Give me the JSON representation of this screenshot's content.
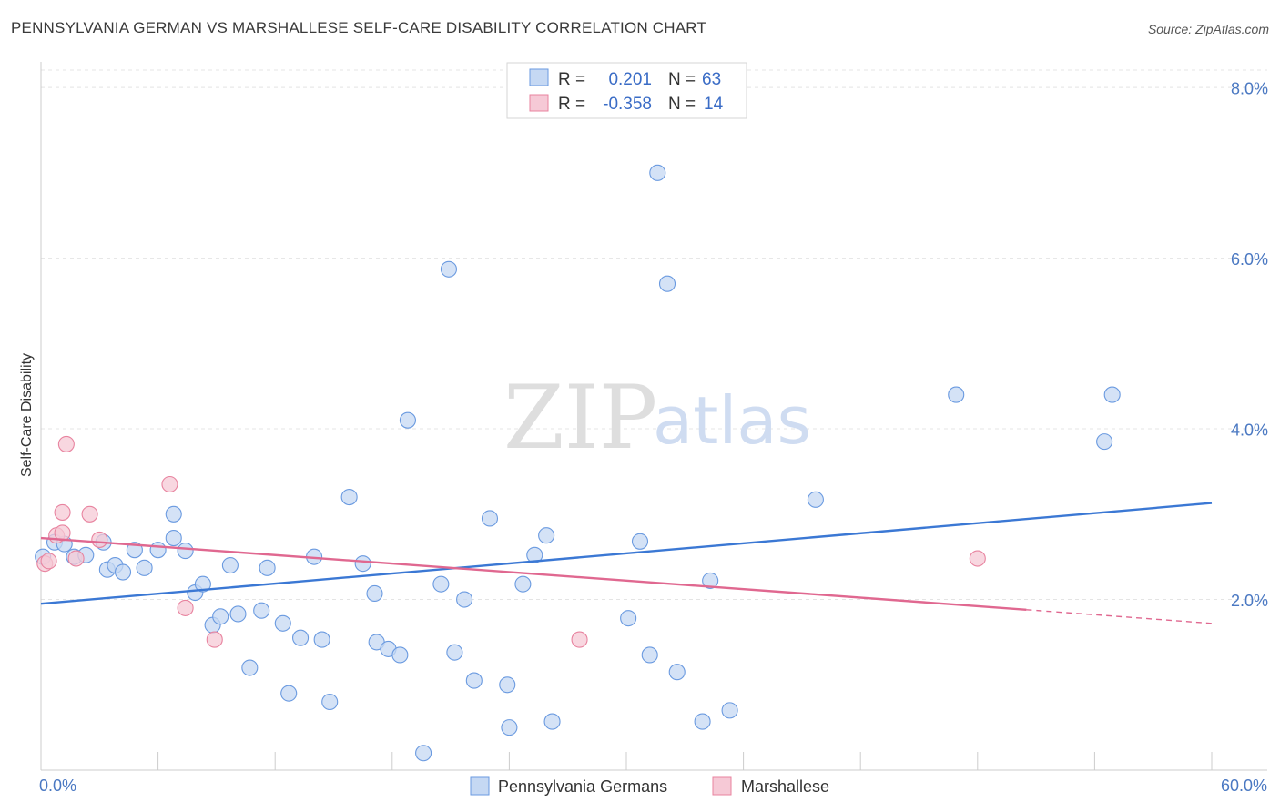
{
  "header": {
    "title": "PENNSYLVANIA GERMAN VS MARSHALLESE SELF-CARE DISABILITY CORRELATION CHART",
    "source": "Source: ZipAtlas.com"
  },
  "watermark": {
    "zip": "ZIP",
    "atlas": "atlas"
  },
  "chart_data": {
    "type": "scatter",
    "title": "PENNSYLVANIA GERMAN VS MARSHALLESE SELF-CARE DISABILITY CORRELATION CHART",
    "xlabel": "",
    "ylabel": "Self-Care Disability",
    "xlim": [
      0,
      60
    ],
    "ylim": [
      0,
      8.3
    ],
    "x_tick_labels": [
      "0.0%",
      "60.0%"
    ],
    "y_ticks": [
      2,
      4,
      6,
      8
    ],
    "y_tick_labels": [
      "2.0%",
      "4.0%",
      "6.0%",
      "8.0%"
    ],
    "grid": true,
    "legend_placement": "top-center",
    "legend": [
      {
        "r_label": "R =",
        "r_value": "0.201",
        "n_label": "N =",
        "n_value": "63"
      },
      {
        "r_label": "R =",
        "r_value": "-0.358",
        "n_label": "N =",
        "n_value": "14"
      }
    ],
    "series": [
      {
        "name": "Pennsylvania Germans",
        "color": "#6a9ae0",
        "fill": "#c5d8f3",
        "trend": {
          "x0": 0,
          "y0": 1.95,
          "x1": 60,
          "y1": 3.13
        },
        "points": [
          [
            0.1,
            2.5
          ],
          [
            0.7,
            2.67
          ],
          [
            1.2,
            2.65
          ],
          [
            1.7,
            2.5
          ],
          [
            2.3,
            2.52
          ],
          [
            3.4,
            2.35
          ],
          [
            3.2,
            2.67
          ],
          [
            3.8,
            2.4
          ],
          [
            4.2,
            2.32
          ],
          [
            4.8,
            2.58
          ],
          [
            5.3,
            2.37
          ],
          [
            6.0,
            2.58
          ],
          [
            6.8,
            3.0
          ],
          [
            6.8,
            2.72
          ],
          [
            7.4,
            2.57
          ],
          [
            7.9,
            2.08
          ],
          [
            8.3,
            2.18
          ],
          [
            8.8,
            1.7
          ],
          [
            9.2,
            1.8
          ],
          [
            9.7,
            2.4
          ],
          [
            10.1,
            1.83
          ],
          [
            10.7,
            1.2
          ],
          [
            11.3,
            1.87
          ],
          [
            11.6,
            2.37
          ],
          [
            12.4,
            1.72
          ],
          [
            12.7,
            0.9
          ],
          [
            13.3,
            1.55
          ],
          [
            14.0,
            2.5
          ],
          [
            14.4,
            1.53
          ],
          [
            14.8,
            0.8
          ],
          [
            15.8,
            3.2
          ],
          [
            16.5,
            2.42
          ],
          [
            17.1,
            2.07
          ],
          [
            17.2,
            1.5
          ],
          [
            17.8,
            1.42
          ],
          [
            18.4,
            1.35
          ],
          [
            18.8,
            4.1
          ],
          [
            19.6,
            0.2
          ],
          [
            20.5,
            2.18
          ],
          [
            20.9,
            5.87
          ],
          [
            21.2,
            1.38
          ],
          [
            21.7,
            2.0
          ],
          [
            22.2,
            1.05
          ],
          [
            23.0,
            2.95
          ],
          [
            23.9,
            1.0
          ],
          [
            24.0,
            0.5
          ],
          [
            24.7,
            2.18
          ],
          [
            25.3,
            2.52
          ],
          [
            25.9,
            2.75
          ],
          [
            26.2,
            0.57
          ],
          [
            30.1,
            1.78
          ],
          [
            30.7,
            2.68
          ],
          [
            31.2,
            1.35
          ],
          [
            31.6,
            7.0
          ],
          [
            32.1,
            5.7
          ],
          [
            32.6,
            1.15
          ],
          [
            33.9,
            0.57
          ],
          [
            34.3,
            2.22
          ],
          [
            35.3,
            0.7
          ],
          [
            39.7,
            3.17
          ],
          [
            46.9,
            4.4
          ],
          [
            54.5,
            3.85
          ],
          [
            54.9,
            4.4
          ]
        ]
      },
      {
        "name": "Marshallese",
        "color": "#e8839f",
        "fill": "#f6c9d6",
        "trend": {
          "x0": 0,
          "y0": 2.72,
          "x1": 50.5,
          "y1": 1.88,
          "dash_to_x": 60,
          "dash_to_y": 1.72
        },
        "points": [
          [
            0.2,
            2.42
          ],
          [
            0.4,
            2.45
          ],
          [
            0.8,
            2.75
          ],
          [
            1.1,
            2.78
          ],
          [
            1.1,
            3.02
          ],
          [
            1.3,
            3.82
          ],
          [
            1.8,
            2.48
          ],
          [
            2.5,
            3.0
          ],
          [
            3.0,
            2.7
          ],
          [
            6.6,
            3.35
          ],
          [
            7.4,
            1.9
          ],
          [
            8.9,
            1.53
          ],
          [
            27.6,
            1.53
          ],
          [
            48.0,
            2.48
          ]
        ]
      }
    ]
  }
}
